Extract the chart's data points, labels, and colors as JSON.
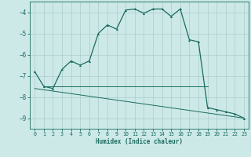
{
  "xlabel": "Humidex (Indice chaleur)",
  "background_color": "#cce9e8",
  "grid_color": "#aaccca",
  "line_color": "#1a6b5e",
  "xlim": [
    -0.5,
    23.5
  ],
  "ylim": [
    -9.5,
    -3.5
  ],
  "yticks": [
    -9,
    -8,
    -7,
    -6,
    -5,
    -4
  ],
  "xticks": [
    0,
    1,
    2,
    3,
    4,
    5,
    6,
    7,
    8,
    9,
    10,
    11,
    12,
    13,
    14,
    15,
    16,
    17,
    18,
    19,
    20,
    21,
    22,
    23
  ],
  "curve1_x": [
    0,
    1,
    2,
    3,
    4,
    5,
    6,
    7,
    8,
    9,
    10,
    11,
    12,
    13,
    14,
    15,
    16,
    17,
    18,
    19,
    20,
    21,
    22,
    23
  ],
  "curve1_y": [
    -6.8,
    -7.5,
    -7.6,
    -6.7,
    -6.3,
    -6.5,
    -6.3,
    -5.0,
    -4.6,
    -4.8,
    -3.9,
    -3.85,
    -4.05,
    -3.85,
    -3.85,
    -4.2,
    -3.85,
    -5.3,
    -5.4,
    -8.5,
    -8.6,
    -8.7,
    -8.8,
    -9.0
  ],
  "line1_x": [
    1,
    19
  ],
  "line1_y": [
    -7.5,
    -7.5
  ],
  "line2_x": [
    0,
    23
  ],
  "line2_y": [
    -7.6,
    -9.0
  ]
}
